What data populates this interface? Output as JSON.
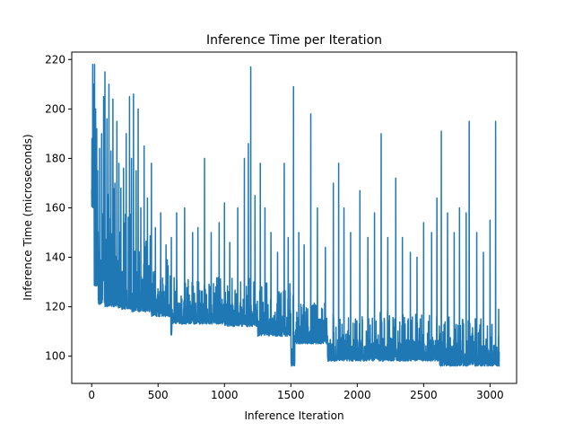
{
  "chart_data": {
    "type": "line",
    "title": "Inference Time per Iteration",
    "xlabel": "Inference Iteration",
    "ylabel": "Inference Time (microseconds)",
    "xlim": [
      -150,
      3200
    ],
    "ylim": [
      89,
      223
    ],
    "xticks": [
      0,
      500,
      1000,
      1500,
      2000,
      2500,
      3000
    ],
    "yticks": [
      100,
      120,
      140,
      160,
      180,
      200,
      220
    ],
    "xtick_labels": [
      "0",
      "500",
      "1000",
      "1500",
      "2000",
      "2500",
      "3000"
    ],
    "ytick_labels": [
      "100",
      "120",
      "140",
      "160",
      "180",
      "200",
      "220"
    ],
    "grid": false,
    "legend": "none",
    "series_color": "#1f77b4",
    "series": [
      {
        "n_points": 3070,
        "segments": [
          {
            "x0": 0,
            "x1": 20,
            "low": 160,
            "high": 190
          },
          {
            "x0": 20,
            "x1": 50,
            "low": 128,
            "high": 185
          },
          {
            "x0": 50,
            "x1": 100,
            "low": 121,
            "high": 175
          },
          {
            "x0": 100,
            "x1": 200,
            "low": 120,
            "high": 168
          },
          {
            "x0": 200,
            "x1": 300,
            "low": 119,
            "high": 158
          },
          {
            "x0": 300,
            "x1": 450,
            "low": 118,
            "high": 150
          },
          {
            "x0": 450,
            "x1": 600,
            "low": 116,
            "high": 140
          },
          {
            "x0": 600,
            "x1": 1000,
            "low": 113,
            "high": 132
          },
          {
            "x0": 1000,
            "x1": 1250,
            "low": 112,
            "high": 132
          },
          {
            "x0": 1250,
            "x1": 1500,
            "low": 108,
            "high": 130
          },
          {
            "x0": 1500,
            "x1": 1530,
            "low": 96,
            "high": 125
          },
          {
            "x0": 1530,
            "x1": 1780,
            "low": 105,
            "high": 122
          },
          {
            "x0": 1780,
            "x1": 2620,
            "low": 98,
            "high": 118
          },
          {
            "x0": 2620,
            "x1": 3070,
            "low": 96,
            "high": 116
          }
        ],
        "dips": [
          {
            "x": 600,
            "y": 108
          },
          {
            "x": 1505,
            "y": 96
          },
          {
            "x": 1780,
            "y": 98
          },
          {
            "x": 2630,
            "y": 96
          }
        ],
        "spikes": [
          {
            "x": 2,
            "y": 188
          },
          {
            "x": 8,
            "y": 218
          },
          {
            "x": 14,
            "y": 210
          },
          {
            "x": 22,
            "y": 218
          },
          {
            "x": 30,
            "y": 200
          },
          {
            "x": 38,
            "y": 192
          },
          {
            "x": 45,
            "y": 175
          },
          {
            "x": 60,
            "y": 184
          },
          {
            "x": 75,
            "y": 190
          },
          {
            "x": 90,
            "y": 205
          },
          {
            "x": 100,
            "y": 215
          },
          {
            "x": 115,
            "y": 196
          },
          {
            "x": 130,
            "y": 210
          },
          {
            "x": 145,
            "y": 183
          },
          {
            "x": 160,
            "y": 204
          },
          {
            "x": 175,
            "y": 170
          },
          {
            "x": 190,
            "y": 195
          },
          {
            "x": 205,
            "y": 178
          },
          {
            "x": 220,
            "y": 168
          },
          {
            "x": 240,
            "y": 176
          },
          {
            "x": 260,
            "y": 190
          },
          {
            "x": 285,
            "y": 205
          },
          {
            "x": 300,
            "y": 180
          },
          {
            "x": 315,
            "y": 206
          },
          {
            "x": 335,
            "y": 175
          },
          {
            "x": 350,
            "y": 200
          },
          {
            "x": 370,
            "y": 160
          },
          {
            "x": 395,
            "y": 185
          },
          {
            "x": 420,
            "y": 164
          },
          {
            "x": 450,
            "y": 178
          },
          {
            "x": 480,
            "y": 152
          },
          {
            "x": 520,
            "y": 158
          },
          {
            "x": 560,
            "y": 145
          },
          {
            "x": 600,
            "y": 148
          },
          {
            "x": 640,
            "y": 158
          },
          {
            "x": 700,
            "y": 160
          },
          {
            "x": 760,
            "y": 150
          },
          {
            "x": 800,
            "y": 152
          },
          {
            "x": 850,
            "y": 180
          },
          {
            "x": 900,
            "y": 150
          },
          {
            "x": 960,
            "y": 154
          },
          {
            "x": 1000,
            "y": 162
          },
          {
            "x": 1040,
            "y": 146
          },
          {
            "x": 1100,
            "y": 160
          },
          {
            "x": 1150,
            "y": 180
          },
          {
            "x": 1180,
            "y": 186
          },
          {
            "x": 1198,
            "y": 217
          },
          {
            "x": 1230,
            "y": 165
          },
          {
            "x": 1270,
            "y": 178
          },
          {
            "x": 1305,
            "y": 160
          },
          {
            "x": 1350,
            "y": 150
          },
          {
            "x": 1400,
            "y": 142
          },
          {
            "x": 1450,
            "y": 178
          },
          {
            "x": 1480,
            "y": 148
          },
          {
            "x": 1520,
            "y": 209
          },
          {
            "x": 1560,
            "y": 150
          },
          {
            "x": 1600,
            "y": 145
          },
          {
            "x": 1650,
            "y": 198
          },
          {
            "x": 1700,
            "y": 160
          },
          {
            "x": 1760,
            "y": 144
          },
          {
            "x": 1820,
            "y": 170
          },
          {
            "x": 1860,
            "y": 178
          },
          {
            "x": 1900,
            "y": 160
          },
          {
            "x": 1950,
            "y": 150
          },
          {
            "x": 2020,
            "y": 167
          },
          {
            "x": 2080,
            "y": 148
          },
          {
            "x": 2130,
            "y": 158
          },
          {
            "x": 2180,
            "y": 190
          },
          {
            "x": 2230,
            "y": 148
          },
          {
            "x": 2290,
            "y": 172
          },
          {
            "x": 2340,
            "y": 148
          },
          {
            "x": 2400,
            "y": 142
          },
          {
            "x": 2450,
            "y": 140
          },
          {
            "x": 2500,
            "y": 154
          },
          {
            "x": 2560,
            "y": 150
          },
          {
            "x": 2600,
            "y": 164
          },
          {
            "x": 2633,
            "y": 191
          },
          {
            "x": 2680,
            "y": 158
          },
          {
            "x": 2730,
            "y": 150
          },
          {
            "x": 2770,
            "y": 160
          },
          {
            "x": 2820,
            "y": 158
          },
          {
            "x": 2843,
            "y": 195
          },
          {
            "x": 2900,
            "y": 150
          },
          {
            "x": 2950,
            "y": 142
          },
          {
            "x": 3000,
            "y": 155
          },
          {
            "x": 3042,
            "y": 195
          },
          {
            "x": 3065,
            "y": 119
          }
        ]
      }
    ]
  }
}
